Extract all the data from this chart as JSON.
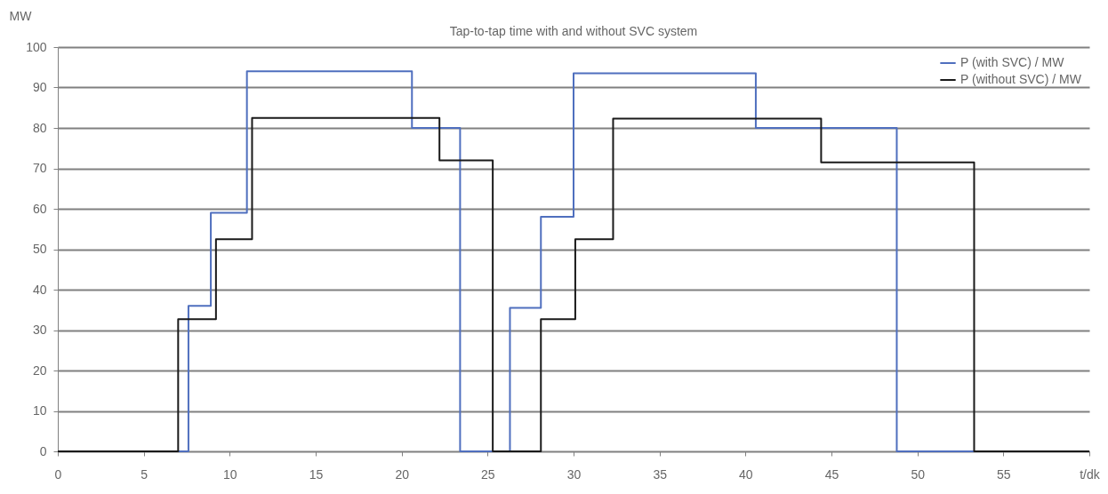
{
  "chart_data": {
    "type": "step",
    "title": "Tap-to-tap time with and without SVC system",
    "ylabel": "MW",
    "xlim": [
      0,
      60
    ],
    "xticks": [
      0,
      5,
      10,
      15,
      20,
      25,
      30,
      35,
      40,
      45,
      50,
      55,
      {
        "value": 60,
        "label": "t/dk"
      }
    ],
    "ylim": [
      0,
      100
    ],
    "yticks": [
      0,
      10,
      20,
      30,
      40,
      50,
      60,
      70,
      80,
      90,
      100
    ],
    "grid": "y",
    "legend": "top right",
    "series": [
      {
        "name": "P (with SVC) / MW",
        "color": "#4f6fbe",
        "x": [
          0,
          7.6,
          8.9,
          11,
          20.6,
          23.4,
          26.3,
          28.1,
          30,
          40.6,
          48.8,
          60
        ],
        "values": [
          0,
          36,
          59,
          94,
          80,
          0,
          35.5,
          58,
          93.5,
          80,
          0,
          0
        ]
      },
      {
        "name": "P (without SVC) / MW",
        "color": "#1a1a1a",
        "x": [
          0,
          7,
          9.2,
          11.3,
          22.2,
          25.3,
          28.1,
          30.1,
          32.3,
          44.4,
          53.3,
          60
        ],
        "values": [
          0,
          32.7,
          52.5,
          82.5,
          72,
          0,
          32.7,
          52.5,
          82.3,
          71.5,
          0,
          0
        ]
      }
    ]
  }
}
